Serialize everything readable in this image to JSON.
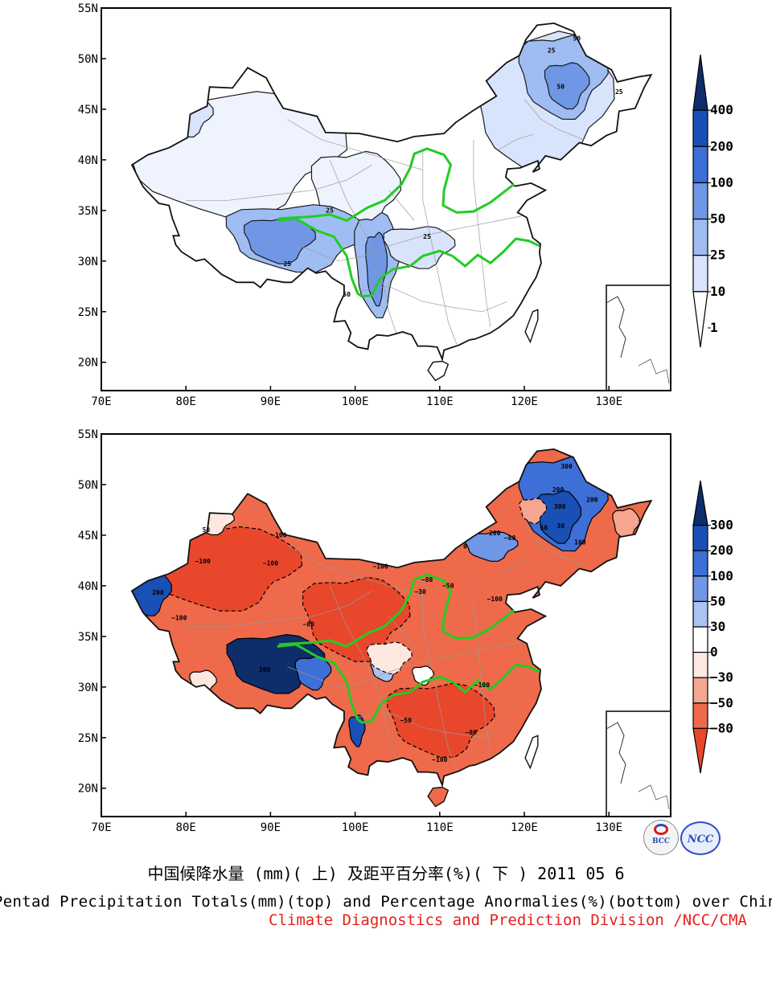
{
  "top_map": {
    "lat_ticks": [
      "55N",
      "50N",
      "45N",
      "40N",
      "35N",
      "30N",
      "25N",
      "20N"
    ],
    "lon_ticks": [
      "70E",
      "80E",
      "90E",
      "100E",
      "110E",
      "120E",
      "130E"
    ],
    "colorbar_labels": [
      "400",
      "200",
      "100",
      "50",
      "25",
      "10",
      "1"
    ],
    "colorbar_colors": [
      "#0d2d6b",
      "#1a4fb5",
      "#3d6fd6",
      "#6f97e6",
      "#9fbdf2",
      "#d7e4fb",
      "#ffffff"
    ],
    "contour_labels": [
      "50",
      "25",
      "50",
      "25",
      "25",
      "25",
      "25",
      "50"
    ]
  },
  "bottom_map": {
    "lat_ticks": [
      "55N",
      "50N",
      "45N",
      "40N",
      "35N",
      "30N",
      "25N",
      "20N"
    ],
    "lon_ticks": [
      "70E",
      "80E",
      "90E",
      "100E",
      "110E",
      "120E",
      "130E"
    ],
    "colorbar_labels": [
      "300",
      "200",
      "100",
      "50",
      "30",
      "0",
      "−30",
      "−50",
      "−80"
    ],
    "colorbar_colors": [
      "#0d2d6b",
      "#1a4fb5",
      "#3d6fd6",
      "#6f97e6",
      "#a9c3f2",
      "#ffffff",
      "#fde8e0",
      "#f6a68e",
      "#ef6a4c",
      "#e8472c"
    ],
    "contour_labels": [
      "300",
      "200",
      "300",
      "200",
      "200",
      "50",
      "30",
      "0",
      "100",
      "−100",
      "−80",
      "−50",
      "−30",
      "−100",
      "−100",
      "200",
      "300",
      "−80",
      "−100",
      "−100",
      "−80",
      "−100",
      "−100",
      "−50",
      "−100",
      "−80",
      "50"
    ]
  },
  "title_cn": "中国候降水量 (mm)( 上) 及距平百分率(%)( 下 ) 2011 05 6",
  "title_en": "Pentad Precipitation Totals(mm)(top) and Percentage Anormalies(%)(bottom) over China",
  "credit": "Climate Diagnostics and Prediction Division /NCC/CMA",
  "logos": {
    "bcc": "BCC",
    "ncc": "NCC"
  }
}
